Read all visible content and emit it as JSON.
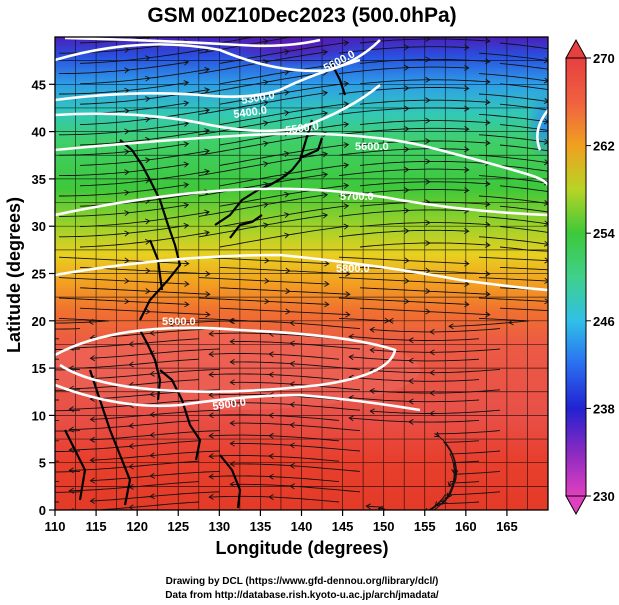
{
  "title": "GSM 00Z10Dec2023 (500.0hPa)",
  "x_axis": {
    "label": "Longitude (degrees)",
    "ticks": [
      "110",
      "115",
      "120",
      "125",
      "130",
      "135",
      "140",
      "145",
      "150",
      "155",
      "160",
      "165"
    ]
  },
  "y_axis": {
    "label": "Latitude (degrees)",
    "ticks": [
      "0",
      "5",
      "10",
      "15",
      "20",
      "25",
      "30",
      "35",
      "40",
      "45"
    ]
  },
  "colorbar": {
    "ticks": [
      "230",
      "238",
      "246",
      "254",
      "262",
      "270"
    ],
    "range": [
      230,
      270
    ],
    "colors": [
      "#e040c0",
      "#6a1fb8",
      "#2222d0",
      "#2a7ef0",
      "#30c0e8",
      "#3fd08a",
      "#3ec83a",
      "#8ed02a",
      "#e8d020",
      "#f0a020",
      "#f06040",
      "#e84040"
    ]
  },
  "contour_labels": [
    "5600.0",
    "5300.0",
    "5400.0",
    "5500.0",
    "5600.0",
    "5700.0",
    "5800.0",
    "5900.0",
    "5900.0"
  ],
  "credits": {
    "line1": "Drawing by DCL (https://www.gfd-dennou.org/library/dcl/)",
    "line2": "Data from http://database.rish.kyoto-u.ac.jp/arch/jmadata/"
  }
}
